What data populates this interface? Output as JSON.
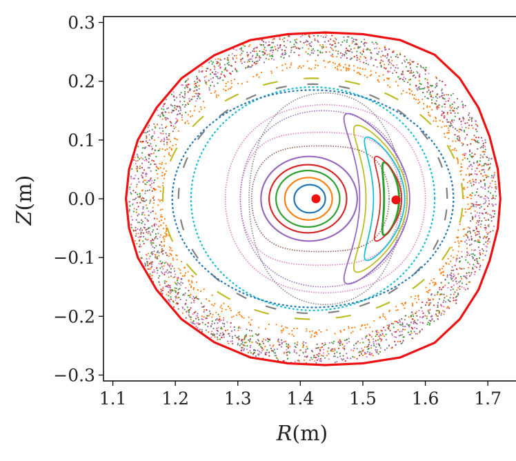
{
  "chart_data": {
    "type": "scatter",
    "title": "",
    "xlabel": "R(m)",
    "ylabel": "Z(m)",
    "xlabel_parts": {
      "var": "R",
      "unit": "(m)"
    },
    "ylabel_parts": {
      "var": "Z",
      "unit": "(m)"
    },
    "xlim": [
      1.085,
      1.755
    ],
    "ylim": [
      -0.31,
      0.31
    ],
    "xticks": [
      1.1,
      1.2,
      1.3,
      1.4,
      1.5,
      1.6,
      1.7
    ],
    "xtick_labels": [
      "1.1",
      "1.2",
      "1.3",
      "1.4",
      "1.5",
      "1.6",
      "1.7"
    ],
    "yticks": [
      0.3,
      0.2,
      0.1,
      0.0,
      -0.1,
      -0.2,
      -0.3
    ],
    "ytick_labels": [
      "0.3",
      "0.2",
      "0.1",
      "0.0",
      "−0.1",
      "−0.2",
      "−0.3"
    ],
    "grid": false,
    "colors": {
      "blue": "#1f77b4",
      "orange": "#ff7f0e",
      "green": "#2ca02c",
      "red": "#d62728",
      "purple": "#9467bd",
      "brown": "#8c564b",
      "pink": "#e377c2",
      "gray": "#7f7f7f",
      "olive": "#bcbd22",
      "cyan": "#17becf",
      "boundary": "#ee1111"
    },
    "magnetic_axis": {
      "R": 1.425,
      "Z": 0.0
    },
    "island_o_point": {
      "R": 1.553,
      "Z": -0.002
    },
    "boundary": [
      [
        1.72,
        0.0
      ],
      [
        1.716,
        0.05
      ],
      [
        1.703,
        0.105
      ],
      [
        1.685,
        0.155
      ],
      [
        1.655,
        0.205
      ],
      [
        1.615,
        0.245
      ],
      [
        1.56,
        0.27
      ],
      [
        1.5,
        0.28
      ],
      [
        1.44,
        0.283
      ],
      [
        1.38,
        0.28
      ],
      [
        1.32,
        0.27
      ],
      [
        1.262,
        0.244
      ],
      [
        1.21,
        0.205
      ],
      [
        1.17,
        0.155
      ],
      [
        1.14,
        0.1
      ],
      [
        1.126,
        0.05
      ],
      [
        1.121,
        0.0
      ],
      [
        1.126,
        -0.05
      ],
      [
        1.14,
        -0.1
      ],
      [
        1.17,
        -0.155
      ],
      [
        1.21,
        -0.205
      ],
      [
        1.262,
        -0.244
      ],
      [
        1.32,
        -0.27
      ],
      [
        1.38,
        -0.28
      ],
      [
        1.44,
        -0.283
      ],
      [
        1.5,
        -0.28
      ],
      [
        1.56,
        -0.27
      ],
      [
        1.615,
        -0.245
      ],
      [
        1.655,
        -0.205
      ],
      [
        1.685,
        -0.155
      ],
      [
        1.703,
        -0.105
      ],
      [
        1.716,
        -0.05
      ]
    ],
    "core_surfaces": [
      {
        "name": "blue",
        "R0": 1.415,
        "a": 0.025,
        "b": 0.024
      },
      {
        "name": "orange",
        "R0": 1.413,
        "a": 0.038,
        "b": 0.036
      },
      {
        "name": "green",
        "R0": 1.412,
        "a": 0.051,
        "b": 0.048
      },
      {
        "name": "red",
        "R0": 1.412,
        "a": 0.062,
        "b": 0.058
      },
      {
        "name": "purple",
        "R0": 1.414,
        "a": 0.077,
        "b": 0.072
      }
    ],
    "island_chain": [
      {
        "name": "green",
        "R": 1.546,
        "a": 0.012,
        "b": 0.062
      },
      {
        "name": "red",
        "R": 1.545,
        "a": 0.017,
        "b": 0.072
      },
      {
        "name": "cyan",
        "R": 1.542,
        "a": 0.025,
        "b": 0.105
      },
      {
        "name": "olive",
        "R": 1.538,
        "a": 0.033,
        "b": 0.125
      },
      {
        "name": "purple",
        "R": 1.535,
        "a": 0.04,
        "b": 0.145
      }
    ],
    "separatrix_bands": [
      {
        "name": "brown",
        "R0": 1.432,
        "a": 0.11,
        "b": 0.09
      },
      {
        "name": "pink",
        "R0": 1.432,
        "a": 0.128,
        "b": 0.113
      },
      {
        "name": "purple",
        "R0": 1.437,
        "a": 0.133,
        "b": 0.15
      },
      {
        "name": "gray",
        "R0": 1.44,
        "a": 0.122,
        "b": 0.18
      },
      {
        "name": "pink",
        "R0": 1.44,
        "a": 0.16,
        "b": 0.16
      }
    ],
    "broken_surfaces": [
      {
        "name": "olive",
        "R0": 1.42,
        "a": 0.24,
        "b": 0.205
      },
      {
        "name": "gray",
        "R0": 1.42,
        "a": 0.215,
        "b": 0.195
      },
      {
        "name": "cyan",
        "R0": 1.42,
        "a": 0.195,
        "b": 0.19
      },
      {
        "name": "blue",
        "R0": 1.42,
        "a": 0.225,
        "b": 0.185
      }
    ],
    "stochastic_layers": [
      {
        "name": "orange",
        "R0": 1.42,
        "a": 0.255,
        "b": 0.232
      },
      {
        "name": "pink",
        "R0": 1.42,
        "a": 0.275,
        "b": 0.255
      },
      {
        "name": "red",
        "R0": 1.42,
        "a": 0.283,
        "b": 0.263
      }
    ]
  }
}
